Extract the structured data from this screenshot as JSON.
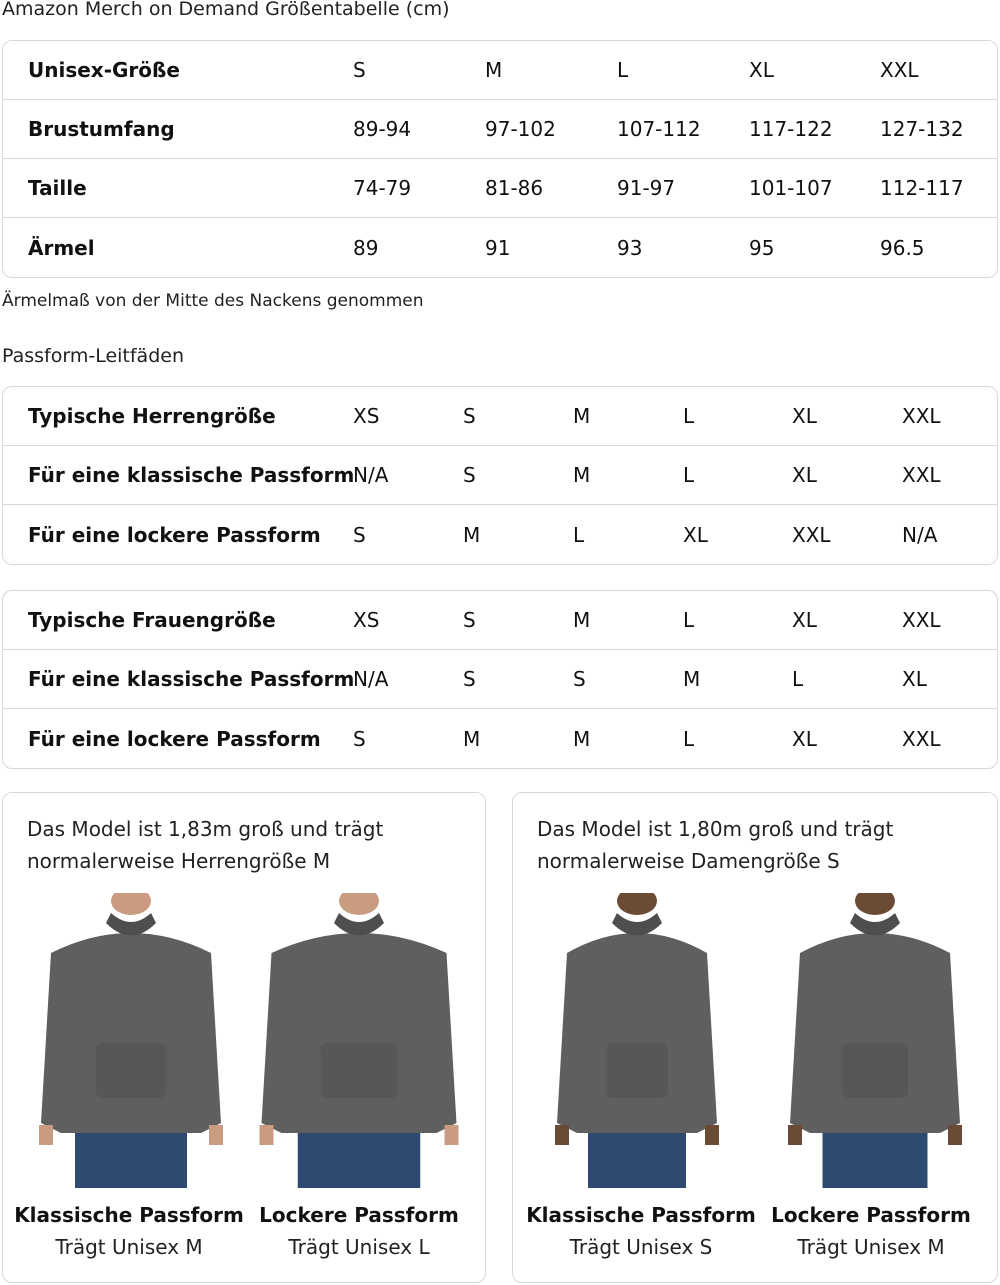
{
  "title": "Amazon Merch on Demand Größentabelle (cm)",
  "size_table": {
    "rows": [
      {
        "label": "Unisex-Größe",
        "values": [
          "S",
          "M",
          "L",
          "XL",
          "XXL"
        ]
      },
      {
        "label": "Brustumfang",
        "values": [
          "89-94",
          "97-102",
          "107-112",
          "117-122",
          "127-132"
        ]
      },
      {
        "label": "Taille",
        "values": [
          "74-79",
          "81-86",
          "91-97",
          "101-107",
          "112-117"
        ]
      },
      {
        "label": "Ärmel",
        "values": [
          "89",
          "91",
          "93",
          "95",
          "96.5"
        ]
      }
    ]
  },
  "note": "Ärmelmaß von der Mitte des Nackens genommen",
  "fit_title": "Passform-Leitfäden",
  "men_table": {
    "rows": [
      {
        "label": "Typische Herrengröße",
        "values": [
          "XS",
          "S",
          "M",
          "L",
          "XL",
          "XXL"
        ]
      },
      {
        "label": "Für eine klassische Passform",
        "values": [
          "N/A",
          "S",
          "M",
          "L",
          "XL",
          "XXL"
        ]
      },
      {
        "label": "Für eine lockere Passform",
        "values": [
          "S",
          "M",
          "L",
          "XL",
          "XXL",
          "N/A"
        ]
      }
    ]
  },
  "women_table": {
    "rows": [
      {
        "label": "Typische Frauengröße",
        "values": [
          "XS",
          "S",
          "M",
          "L",
          "XL",
          "XXL"
        ]
      },
      {
        "label": "Für eine klassische Passform",
        "values": [
          "N/A",
          "S",
          "S",
          "M",
          "L",
          "XL"
        ]
      },
      {
        "label": "Für eine lockere Passform",
        "values": [
          "S",
          "M",
          "M",
          "L",
          "XL",
          "XXL"
        ]
      }
    ]
  },
  "cards": [
    {
      "text": [
        "Das Model ist 1,83m groß und trägt",
        "normalerweise Herrengröße M"
      ],
      "figures": [
        {
          "title": "Klassische Passform",
          "sub": "Trägt Unisex M"
        },
        {
          "title": "Lockere Passform",
          "sub": "Trägt Unisex L"
        }
      ]
    },
    {
      "text": [
        "Das Model ist 1,80m groß und trägt",
        "normalerweise Damengröße S"
      ],
      "figures": [
        {
          "title": "Klassische Passform",
          "sub": "Trägt Unisex S"
        },
        {
          "title": "Lockere Passform",
          "sub": "Trägt Unisex M"
        }
      ]
    }
  ],
  "colors": {
    "hoodie": "#5f5f5f",
    "jeans": "#2e4a70",
    "border": "#d5d9d9"
  }
}
